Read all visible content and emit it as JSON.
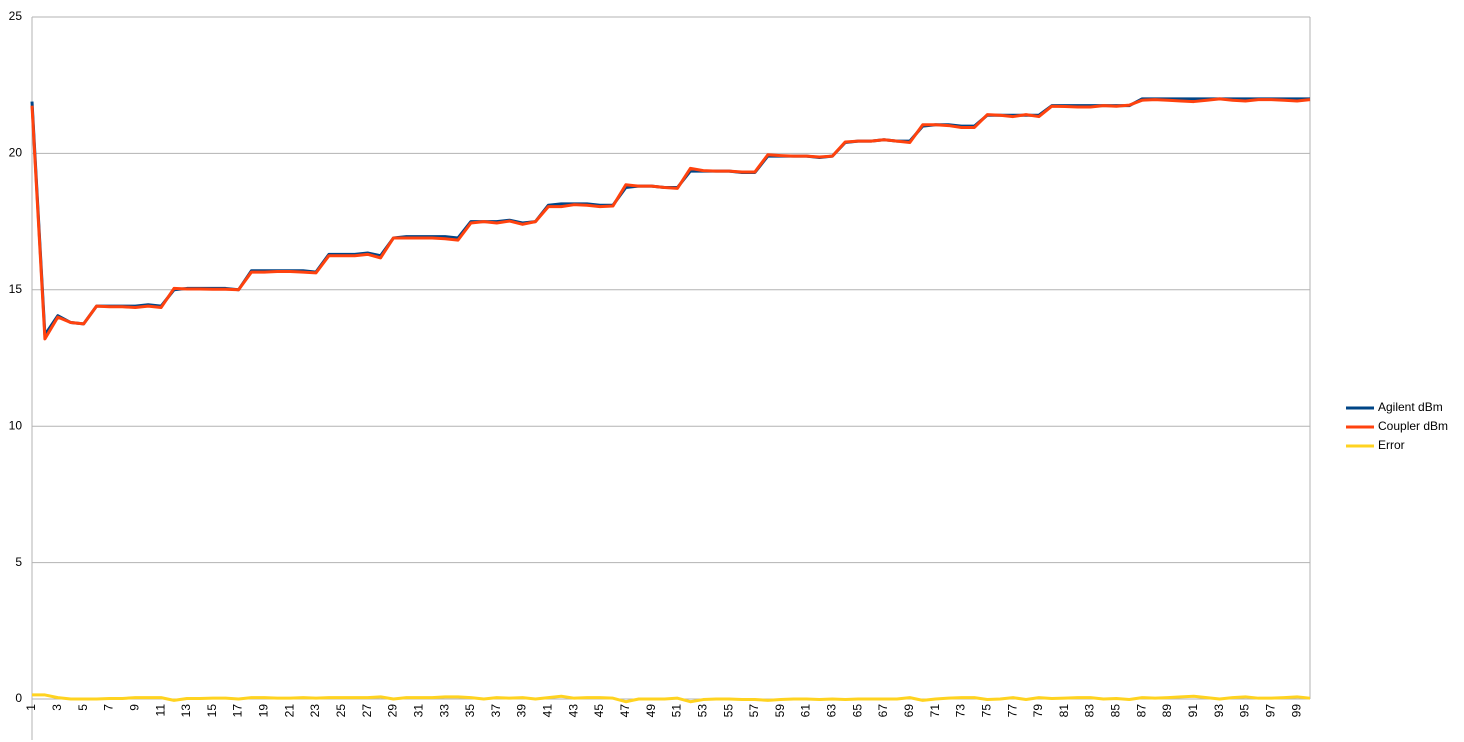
{
  "chart_data": {
    "type": "line",
    "categories": [
      1,
      null,
      3,
      null,
      5,
      null,
      7,
      null,
      9,
      null,
      11,
      null,
      13,
      null,
      15,
      null,
      17,
      null,
      19,
      null,
      21,
      null,
      23,
      null,
      25,
      null,
      27,
      null,
      29,
      null,
      31,
      null,
      33,
      null,
      35,
      null,
      37,
      null,
      39,
      null,
      41,
      null,
      43,
      null,
      45,
      null,
      47,
      null,
      49,
      null,
      51,
      null,
      53,
      null,
      55,
      null,
      57,
      null,
      59,
      null,
      61,
      null,
      63,
      null,
      65,
      null,
      67,
      null,
      69,
      null,
      71,
      null,
      73,
      null,
      75,
      null,
      77,
      null,
      79,
      null,
      81,
      null,
      83,
      null,
      85,
      null,
      87,
      null,
      89,
      null,
      91,
      null,
      93,
      null,
      95,
      null,
      97,
      null,
      99,
      null
    ],
    "series": [
      {
        "name": "Agilent dBm",
        "color": "#004586",
        "values": [
          21.9,
          13.35,
          14.05,
          13.8,
          13.75,
          14.4,
          14.4,
          14.4,
          14.4,
          14.45,
          14.4,
          15.0,
          15.05,
          15.05,
          15.05,
          15.05,
          15.0,
          15.7,
          15.7,
          15.7,
          15.7,
          15.7,
          15.65,
          16.3,
          16.3,
          16.3,
          16.35,
          16.25,
          16.9,
          16.95,
          16.95,
          16.95,
          16.95,
          16.9,
          17.5,
          17.5,
          17.5,
          17.55,
          17.45,
          17.5,
          18.1,
          18.15,
          18.15,
          18.15,
          18.1,
          18.1,
          18.75,
          18.8,
          18.8,
          18.75,
          18.75,
          19.35,
          19.35,
          19.35,
          19.35,
          19.3,
          19.3,
          19.9,
          19.9,
          19.9,
          19.9,
          19.85,
          19.9,
          20.4,
          20.45,
          20.45,
          20.5,
          20.45,
          20.45,
          21.0,
          21.05,
          21.05,
          21.0,
          21.0,
          21.4,
          21.4,
          21.4,
          21.4,
          21.4,
          21.75,
          21.75,
          21.75,
          21.75,
          21.75,
          21.75,
          21.75,
          22.0,
          22.0,
          22.0,
          22.0,
          22.0,
          22.0,
          22.0,
          22.0,
          22.0,
          22.0,
          22.0,
          22.0,
          22.0,
          22.0
        ]
      },
      {
        "name": "Coupler dBm",
        "color": "#ff420e",
        "values": [
          21.75,
          13.2,
          14.0,
          13.8,
          13.75,
          14.4,
          14.38,
          14.38,
          14.35,
          14.4,
          14.35,
          15.05,
          15.03,
          15.03,
          15.02,
          15.02,
          15.0,
          15.65,
          15.65,
          15.67,
          15.67,
          15.65,
          15.62,
          16.25,
          16.25,
          16.25,
          16.3,
          16.17,
          16.9,
          16.9,
          16.9,
          16.9,
          16.87,
          16.82,
          17.45,
          17.5,
          17.45,
          17.52,
          17.4,
          17.5,
          18.05,
          18.05,
          18.12,
          18.1,
          18.05,
          18.07,
          18.85,
          18.8,
          18.8,
          18.75,
          18.72,
          19.45,
          19.37,
          19.35,
          19.35,
          19.32,
          19.32,
          19.95,
          19.92,
          19.9,
          19.9,
          19.87,
          19.9,
          20.42,
          20.45,
          20.45,
          20.5,
          20.45,
          20.4,
          21.05,
          21.05,
          21.02,
          20.95,
          20.95,
          21.42,
          21.4,
          21.35,
          21.42,
          21.35,
          21.73,
          21.72,
          21.7,
          21.7,
          21.75,
          21.73,
          21.77,
          21.95,
          21.97,
          21.95,
          21.92,
          21.9,
          21.95,
          22.0,
          21.95,
          21.92,
          21.97,
          21.97,
          21.95,
          21.92,
          21.97
        ]
      },
      {
        "name": "Error",
        "color": "#ffd320",
        "values": [
          0.15,
          0.15,
          0.05,
          0.0,
          0.0,
          0.0,
          0.02,
          0.02,
          0.05,
          0.05,
          0.05,
          -0.05,
          0.02,
          0.02,
          0.03,
          0.03,
          0.0,
          0.05,
          0.05,
          0.03,
          0.03,
          0.05,
          0.03,
          0.05,
          0.05,
          0.05,
          0.05,
          0.08,
          0.0,
          0.05,
          0.05,
          0.05,
          0.08,
          0.08,
          0.05,
          0.0,
          0.05,
          0.03,
          0.05,
          0.0,
          0.05,
          0.1,
          0.03,
          0.05,
          0.05,
          0.03,
          -0.1,
          0.0,
          0.0,
          0.0,
          0.03,
          -0.1,
          -0.02,
          0.0,
          0.0,
          -0.02,
          -0.02,
          -0.05,
          -0.02,
          0.0,
          0.0,
          -0.02,
          0.0,
          -0.02,
          0.0,
          0.0,
          0.0,
          0.0,
          0.05,
          -0.05,
          0.0,
          0.03,
          0.05,
          0.05,
          -0.02,
          0.0,
          0.05,
          -0.02,
          0.05,
          0.02,
          0.03,
          0.05,
          0.05,
          0.0,
          0.02,
          -0.02,
          0.05,
          0.03,
          0.05,
          0.08,
          0.1,
          0.05,
          0.0,
          0.05,
          0.08,
          0.03,
          0.03,
          0.05,
          0.08,
          0.03
        ]
      }
    ],
    "ylim": [
      0,
      25
    ],
    "yticks": [
      0,
      5,
      10,
      15,
      20,
      25
    ],
    "grid": true,
    "legend": "right"
  }
}
